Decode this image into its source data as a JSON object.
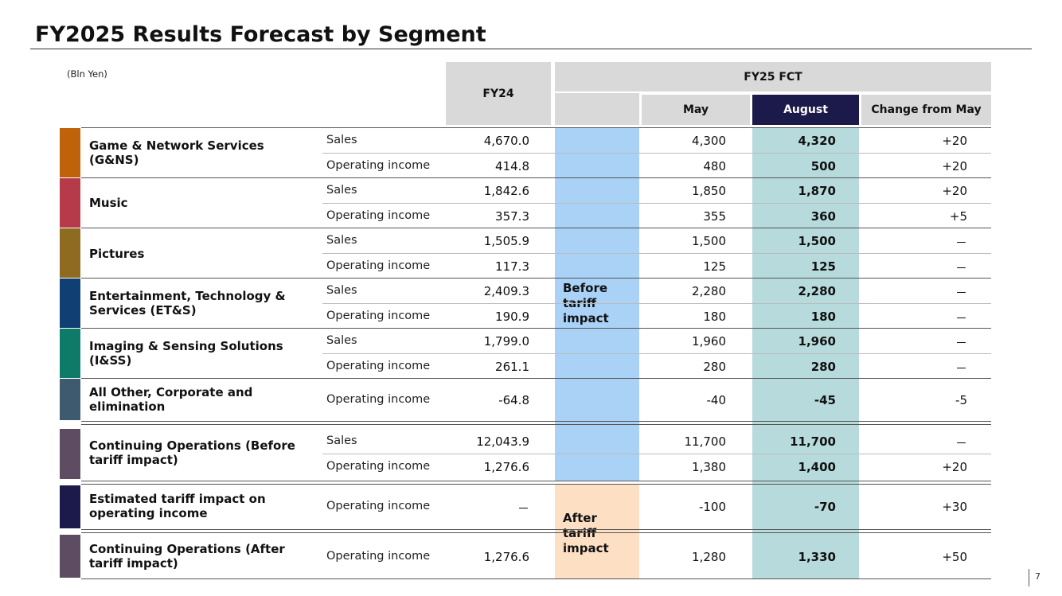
{
  "title": "FY2025 Results Forecast by Segment",
  "unit": "(Bln Yen)",
  "page_number": "7",
  "headers": {
    "fy24": "FY24",
    "fy25": "FY25 FCT",
    "may": "May",
    "august": "August",
    "change": "Change from May"
  },
  "notes": {
    "before": "Before tariff impact",
    "after": "After tariff impact"
  },
  "segments": [
    {
      "name": "Game & Network Services (G&NS)",
      "color": "#c0620a",
      "rows": [
        {
          "metric": "Sales",
          "fy24": "4,670.0",
          "may": "4,300",
          "aug": "4,320",
          "chg": "+20"
        },
        {
          "metric": "Operating income",
          "fy24": "414.8",
          "may": "480",
          "aug": "500",
          "chg": "+20"
        }
      ]
    },
    {
      "name": "Music",
      "color": "#b63a4a",
      "rows": [
        {
          "metric": "Sales",
          "fy24": "1,842.6",
          "may": "1,850",
          "aug": "1,870",
          "chg": "+20"
        },
        {
          "metric": "Operating income",
          "fy24": "357.3",
          "may": "355",
          "aug": "360",
          "chg": "+5"
        }
      ]
    },
    {
      "name": "Pictures",
      "color": "#8e6b20",
      "rows": [
        {
          "metric": "Sales",
          "fy24": "1,505.9",
          "may": "1,500",
          "aug": "1,500",
          "chg": "－"
        },
        {
          "metric": "Operating income",
          "fy24": "117.3",
          "may": "125",
          "aug": "125",
          "chg": "－"
        }
      ]
    },
    {
      "name": "Entertainment, Technology & Services (ET&S)",
      "color": "#0f3f73",
      "rows": [
        {
          "metric": "Sales",
          "fy24": "2,409.3",
          "may": "2,280",
          "aug": "2,280",
          "chg": "－"
        },
        {
          "metric": "Operating income",
          "fy24": "190.9",
          "may": "180",
          "aug": "180",
          "chg": "－"
        }
      ]
    },
    {
      "name": "Imaging & Sensing Solutions (I&SS)",
      "color": "#0e7b68",
      "rows": [
        {
          "metric": "Sales",
          "fy24": "1,799.0",
          "may": "1,960",
          "aug": "1,960",
          "chg": "－"
        },
        {
          "metric": "Operating income",
          "fy24": "261.1",
          "may": "280",
          "aug": "280",
          "chg": "－"
        }
      ]
    },
    {
      "name": "All Other, Corporate and elimination",
      "color": "#3d5a6e",
      "rows": [
        {
          "metric": "Operating income",
          "fy24": "-64.8",
          "may": "-40",
          "aug": "-45",
          "chg": "-5"
        }
      ]
    },
    {
      "name": "Continuing Operations (Before tariff impact)",
      "color": "#5e4c62",
      "rows": [
        {
          "metric": "Sales",
          "fy24": "12,043.9",
          "may": "11,700",
          "aug": "11,700",
          "chg": "－"
        },
        {
          "metric": "Operating income",
          "fy24": "1,276.6",
          "may": "1,380",
          "aug": "1,400",
          "chg": "+20"
        }
      ]
    },
    {
      "name": "Estimated tariff impact on operating income",
      "color": "#1c1a4a",
      "rows": [
        {
          "metric": "Operating income",
          "fy24": "－",
          "may": "-100",
          "aug": "-70",
          "chg": "+30"
        }
      ]
    },
    {
      "name": "Continuing Operations (After tariff impact)",
      "color": "#5e4c62",
      "rows": [
        {
          "metric": "Operating income",
          "fy24": "1,276.6",
          "may": "1,280",
          "aug": "1,330",
          "chg": "+50"
        }
      ]
    }
  ]
}
